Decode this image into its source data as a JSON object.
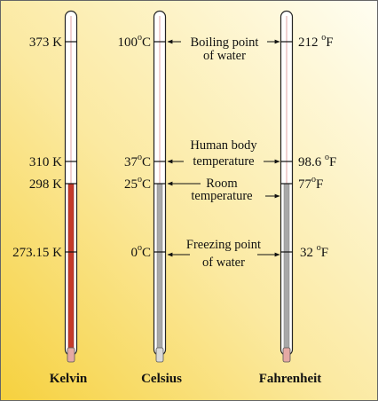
{
  "scales": {
    "kelvin": {
      "name": "Kelvin",
      "unit": "K",
      "boiling": "373",
      "body": "310",
      "room": "298",
      "freezing": "273.15"
    },
    "celsius": {
      "name": "Celsius",
      "unit": "C",
      "deg": "o",
      "boiling": "100",
      "body": "37",
      "room": "25",
      "freezing": "0"
    },
    "fahrenheit": {
      "name": "Fahrenheit",
      "unit": "F",
      "deg": "o",
      "boiling": "212",
      "body": "98.6",
      "room": "77",
      "freezing": "32"
    }
  },
  "descriptions": {
    "boiling": [
      "Boiling point",
      "of water"
    ],
    "body": [
      "Human body",
      "temperature"
    ],
    "room": [
      "Room",
      "temperature"
    ],
    "freezing": [
      "Freezing point",
      "of water"
    ]
  },
  "colors": {
    "background_light": "#FFFDE6",
    "background_dark": "#F7D64A",
    "mercury": "#C43A2A",
    "gray_fill": "#A8A8A8",
    "bulb": "#E5A9A4"
  }
}
